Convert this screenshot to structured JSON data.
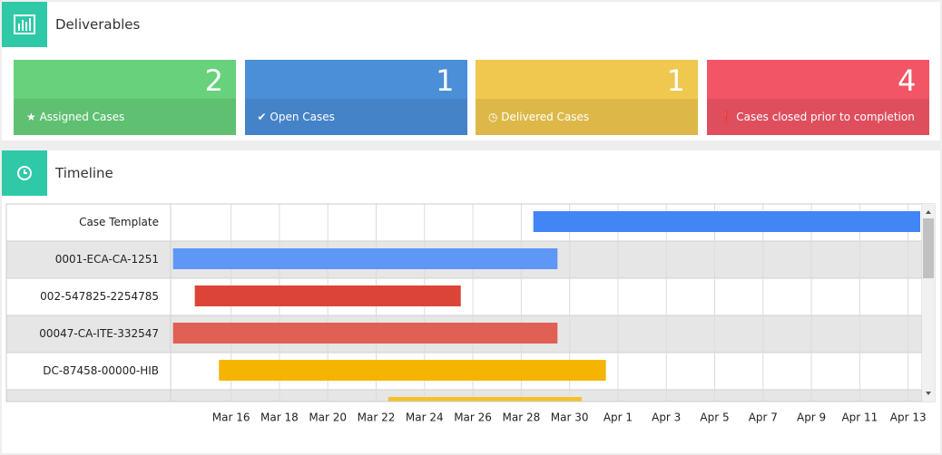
{
  "header": {
    "title": "Deliverables"
  },
  "cards": [
    {
      "value": 2,
      "label": "Assigned Cases",
      "color": "#68d17c"
    },
    {
      "value": 1,
      "label": "Open Cases",
      "color": "#4a8fd8"
    },
    {
      "value": 1,
      "label": "Delivered Cases",
      "color": "#f0c850"
    },
    {
      "value": 4,
      "label": "Cases closed prior to completion",
      "color": "#f25565"
    }
  ],
  "chart_data": {
    "type": "timeline",
    "title": "Timeline",
    "rows": [
      {
        "label": "Case Template",
        "start": 28.5,
        "end": 44.5,
        "color": "#4285f4"
      },
      {
        "label": "0001-ECA-CA-1251",
        "start": 13.6,
        "end": 29.5,
        "color": "#5e97f6"
      },
      {
        "label": "002-547825-2254785",
        "start": 14.5,
        "end": 25.5,
        "color": "#db4437"
      },
      {
        "label": "00047-CA-ITE-332547",
        "start": 13.6,
        "end": 29.5,
        "color": "#e06055"
      },
      {
        "label": "DC-87458-00000-HIB",
        "start": 15.5,
        "end": 31.5,
        "color": "#f4b400"
      },
      {
        "label": null,
        "start": 22.5,
        "end": 30.5,
        "color": "#f6c026"
      }
    ],
    "xlim": [
      13.5,
      44.5
    ],
    "xticks": [
      {
        "value": 16,
        "label": "Mar 16"
      },
      {
        "value": 18,
        "label": "Mar 18"
      },
      {
        "value": 20,
        "label": "Mar 20"
      },
      {
        "value": 22,
        "label": "Mar 22"
      },
      {
        "value": 24,
        "label": "Mar 24"
      },
      {
        "value": 26,
        "label": "Mar 26"
      },
      {
        "value": 28,
        "label": "Mar 28"
      },
      {
        "value": 30,
        "label": "Mar 30"
      },
      {
        "value": 32,
        "label": "Apr 1"
      },
      {
        "value": 34,
        "label": "Apr 3"
      },
      {
        "value": 36,
        "label": "Apr 5"
      },
      {
        "value": 38,
        "label": "Apr 7"
      },
      {
        "value": 40,
        "label": "Apr 9"
      },
      {
        "value": 42,
        "label": "Apr 11"
      },
      {
        "value": 44,
        "label": "Apr 13"
      }
    ],
    "grid": true
  }
}
